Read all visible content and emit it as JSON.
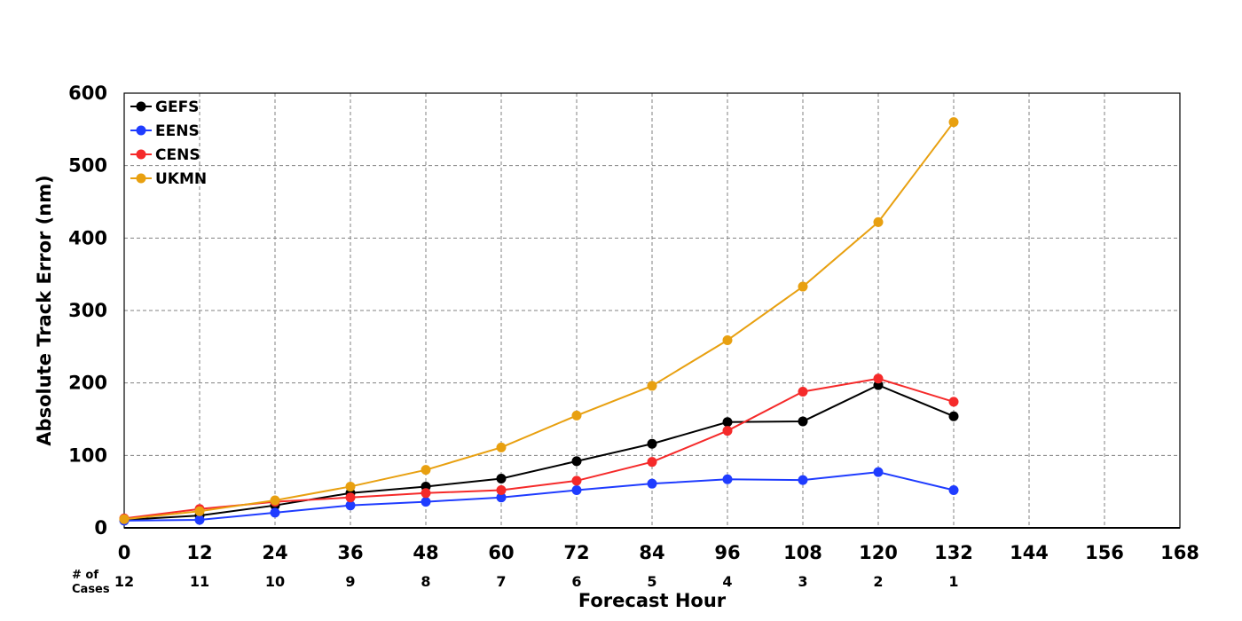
{
  "chart_data": {
    "type": "line",
    "title": "",
    "xlabel": "Forecast Hour",
    "ylabel": "Absolute Track Error (nm)",
    "xlim": [
      0,
      168
    ],
    "ylim": [
      0,
      600
    ],
    "x_ticks": [
      "0",
      "12",
      "24",
      "36",
      "48",
      "60",
      "72",
      "84",
      "96",
      "108",
      "120",
      "132",
      "144",
      "156",
      "168"
    ],
    "y_ticks": [
      "0",
      "100",
      "200",
      "300",
      "400",
      "500",
      "600"
    ],
    "grid": true,
    "legend_position": "top-left",
    "x": [
      0,
      12,
      24,
      36,
      48,
      60,
      72,
      84,
      96,
      108,
      120,
      132
    ],
    "series": [
      {
        "name": "GEFS",
        "color": "#000000",
        "values": [
          11,
          17,
          31,
          48,
          57,
          68,
          92,
          116,
          146,
          147,
          197,
          154
        ]
      },
      {
        "name": "EENS",
        "color": "#1f3cff",
        "values": [
          10,
          11,
          21,
          31,
          36,
          42,
          52,
          61,
          67,
          66,
          77,
          52
        ]
      },
      {
        "name": "CENS",
        "color": "#f52a2a",
        "values": [
          13,
          26,
          36,
          42,
          48,
          52,
          65,
          91,
          134,
          188,
          206,
          174
        ]
      },
      {
        "name": "UKMN",
        "color": "#e8a010",
        "values": [
          12,
          23,
          38,
          57,
          80,
          111,
          155,
          196,
          259,
          333,
          422,
          560
        ]
      }
    ],
    "cases": {
      "title_line1": "# of",
      "title_line2": "Cases",
      "values": [
        "12",
        "11",
        "10",
        "9",
        "8",
        "7",
        "6",
        "5",
        "4",
        "3",
        "2",
        "1"
      ]
    }
  }
}
